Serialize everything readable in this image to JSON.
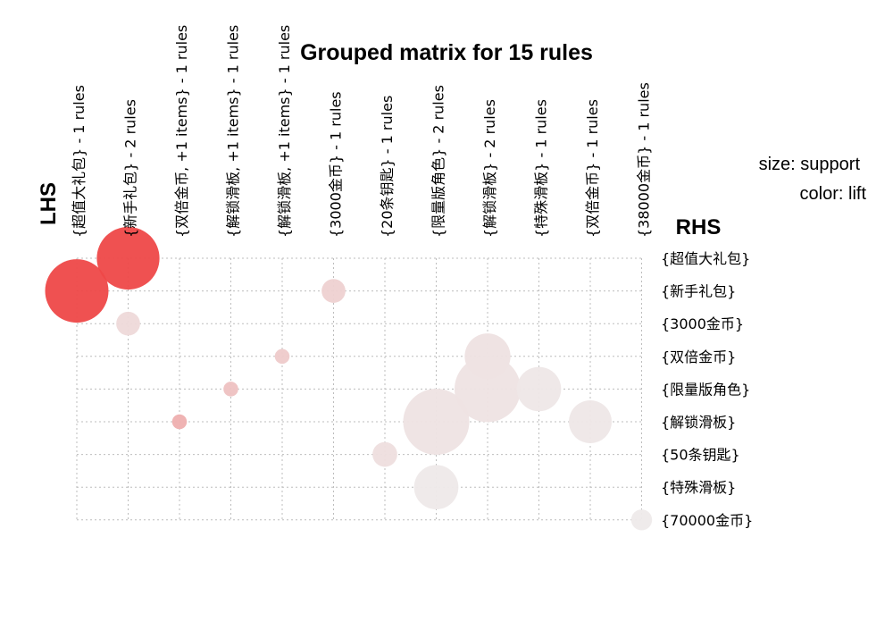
{
  "chart_data": {
    "type": "scatter",
    "title": "Grouped matrix for 15 rules",
    "xlabel": "LHS",
    "ylabel": "RHS",
    "legend": {
      "size_label": "size: support",
      "color_label": "color: lift",
      "position": "top-right"
    },
    "lhs_groups": [
      "{超值大礼包} - 1 rules",
      "{新手礼包} - 2 rules",
      "{双倍金币, +1 items} - 1 rules",
      "{解锁滑板, +1 items} - 1 rules",
      "{解锁滑板, +1 items} - 1 rules",
      "{3000金币} - 1 rules",
      "{20条钥匙} - 1 rules",
      "{限量版角色} - 2 rules",
      "{解锁滑板} - 2 rules",
      "{特殊滑板} - 1 rules",
      "{双倍金币} - 1 rules",
      "{38000金币} - 1 rules"
    ],
    "rhs_items": [
      "{超值大礼包}",
      "{新手礼包}",
      "{3000金币}",
      "{双倍金币}",
      "{限量版角色}",
      "{解锁滑板}",
      "{50条钥匙}",
      "{特殊滑板}",
      "{70000金币}"
    ],
    "points": [
      {
        "lhs": 1,
        "rhs": 0,
        "support": 0.9,
        "lift": 0.93
      },
      {
        "lhs": 0,
        "rhs": 1,
        "support": 0.92,
        "lift": 0.93
      },
      {
        "lhs": 5,
        "rhs": 1,
        "support": 0.13,
        "lift": 0.16
      },
      {
        "lhs": 1,
        "rhs": 2,
        "support": 0.13,
        "lift": 0.12
      },
      {
        "lhs": 4,
        "rhs": 3,
        "support": 0.05,
        "lift": 0.2
      },
      {
        "lhs": 8,
        "rhs": 3,
        "support": 0.48,
        "lift": 0.07
      },
      {
        "lhs": 3,
        "rhs": 4,
        "support": 0.05,
        "lift": 0.25
      },
      {
        "lhs": 8,
        "rhs": 4,
        "support": 1.0,
        "lift": 0.06
      },
      {
        "lhs": 9,
        "rhs": 4,
        "support": 0.45,
        "lift": 0.04
      },
      {
        "lhs": 2,
        "rhs": 5,
        "support": 0.05,
        "lift": 0.35
      },
      {
        "lhs": 7,
        "rhs": 5,
        "support": 1.0,
        "lift": 0.06
      },
      {
        "lhs": 10,
        "rhs": 5,
        "support": 0.42,
        "lift": 0.04
      },
      {
        "lhs": 6,
        "rhs": 6,
        "support": 0.14,
        "lift": 0.09
      },
      {
        "lhs": 7,
        "rhs": 7,
        "support": 0.45,
        "lift": 0.03
      },
      {
        "lhs": 11,
        "rhs": 8,
        "support": 0.1,
        "lift": 0.02
      }
    ],
    "grid": true,
    "colors": {
      "high": "#ee3b3b",
      "low": "#eeeeee",
      "grid": "#bdbdbd"
    }
  }
}
